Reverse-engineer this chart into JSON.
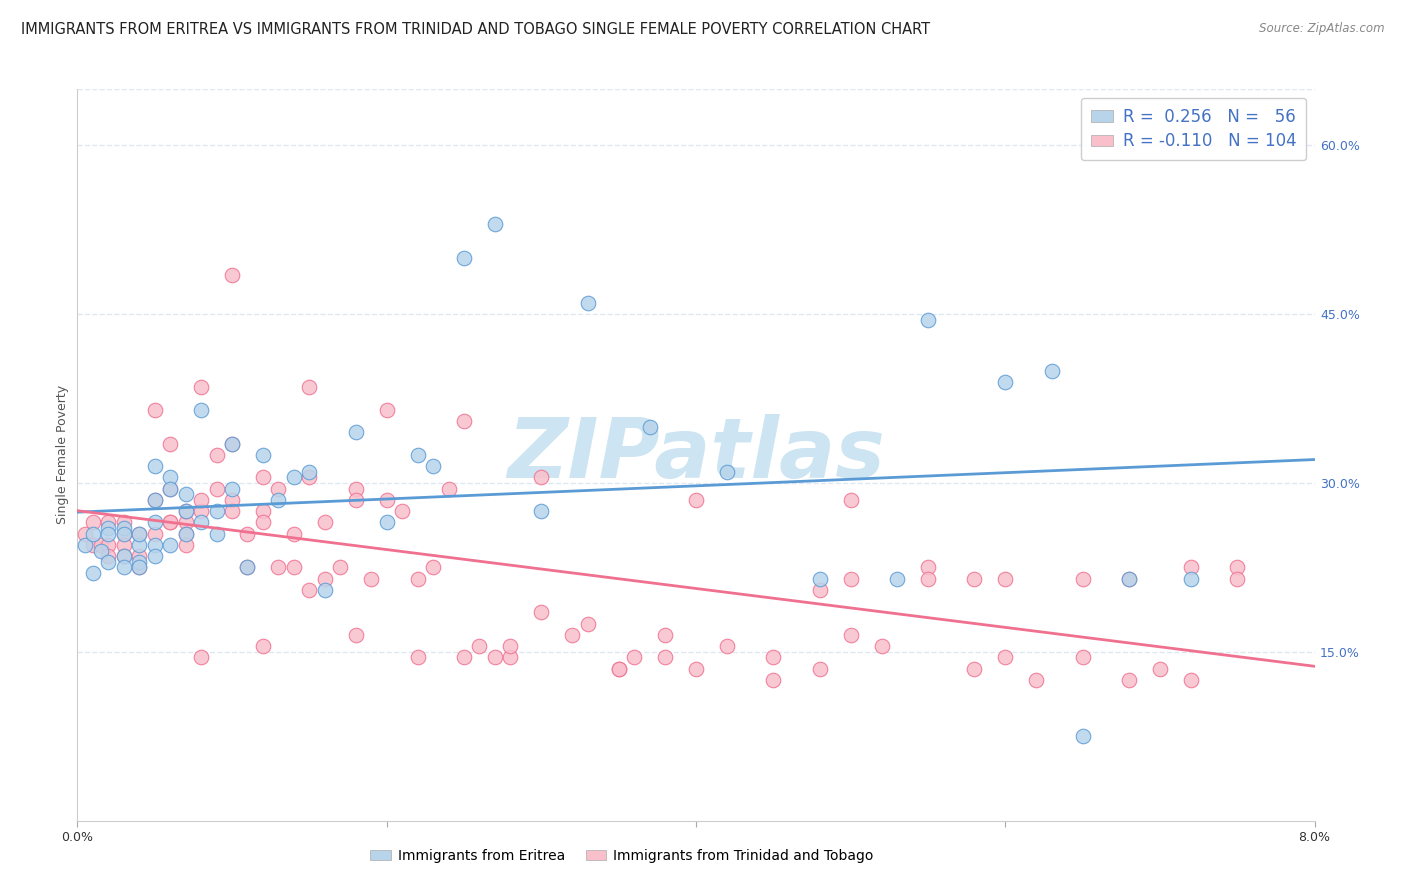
{
  "title": "IMMIGRANTS FROM ERITREA VS IMMIGRANTS FROM TRINIDAD AND TOBAGO SINGLE FEMALE POVERTY CORRELATION CHART",
  "source": "Source: ZipAtlas.com",
  "ylabel": "Single Female Poverty",
  "xlim": [
    0.0,
    0.08
  ],
  "ylim": [
    0.0,
    0.65
  ],
  "y_ticks_right": [
    0.15,
    0.3,
    0.45,
    0.6
  ],
  "y_tick_labels_right": [
    "15.0%",
    "30.0%",
    "45.0%",
    "60.0%"
  ],
  "legend_eritrea_R": "0.256",
  "legend_eritrea_N": "56",
  "legend_tt_R": "-0.110",
  "legend_tt_N": "104",
  "color_eritrea_fill": "#b8d4ea",
  "color_tt_fill": "#f9c0cc",
  "color_eritrea_edge": "#5b9bd5",
  "color_tt_edge": "#f07090",
  "color_eritrea_line": "#5b9bd5",
  "color_tt_line": "#f07090",
  "color_legend_blue": "#4472c4",
  "color_legend_pink": "#e05070",
  "watermark_text": "ZIPatlas",
  "watermark_color": "#cde4f2",
  "background_color": "#ffffff",
  "grid_color": "#dde8f0",
  "title_fontsize": 10.5,
  "axis_fontsize": 9,
  "legend_fontsize": 12,
  "scatter_eritrea_x": [
    0.0005,
    0.001,
    0.001,
    0.0015,
    0.002,
    0.002,
    0.002,
    0.003,
    0.003,
    0.003,
    0.003,
    0.004,
    0.004,
    0.004,
    0.004,
    0.005,
    0.005,
    0.005,
    0.005,
    0.005,
    0.006,
    0.006,
    0.006,
    0.007,
    0.007,
    0.007,
    0.008,
    0.008,
    0.009,
    0.009,
    0.01,
    0.01,
    0.011,
    0.012,
    0.013,
    0.014,
    0.015,
    0.016,
    0.018,
    0.02,
    0.022,
    0.023,
    0.025,
    0.027,
    0.03,
    0.033,
    0.037,
    0.042,
    0.048,
    0.053,
    0.055,
    0.06,
    0.063,
    0.065,
    0.068,
    0.072
  ],
  "scatter_eritrea_y": [
    0.245,
    0.22,
    0.255,
    0.24,
    0.26,
    0.23,
    0.255,
    0.26,
    0.235,
    0.255,
    0.225,
    0.245,
    0.23,
    0.255,
    0.225,
    0.265,
    0.245,
    0.315,
    0.285,
    0.235,
    0.305,
    0.295,
    0.245,
    0.29,
    0.275,
    0.255,
    0.365,
    0.265,
    0.275,
    0.255,
    0.335,
    0.295,
    0.225,
    0.325,
    0.285,
    0.305,
    0.31,
    0.205,
    0.345,
    0.265,
    0.325,
    0.315,
    0.5,
    0.53,
    0.275,
    0.46,
    0.35,
    0.31,
    0.215,
    0.215,
    0.445,
    0.39,
    0.4,
    0.075,
    0.215,
    0.215
  ],
  "scatter_tt_x": [
    0.0005,
    0.001,
    0.001,
    0.0015,
    0.002,
    0.002,
    0.002,
    0.003,
    0.003,
    0.003,
    0.003,
    0.004,
    0.004,
    0.004,
    0.005,
    0.005,
    0.005,
    0.006,
    0.006,
    0.006,
    0.006,
    0.007,
    0.007,
    0.007,
    0.007,
    0.008,
    0.008,
    0.008,
    0.009,
    0.009,
    0.01,
    0.01,
    0.01,
    0.011,
    0.011,
    0.012,
    0.012,
    0.012,
    0.013,
    0.013,
    0.014,
    0.014,
    0.015,
    0.015,
    0.016,
    0.016,
    0.017,
    0.018,
    0.018,
    0.019,
    0.02,
    0.021,
    0.022,
    0.023,
    0.024,
    0.025,
    0.026,
    0.027,
    0.028,
    0.03,
    0.032,
    0.033,
    0.035,
    0.036,
    0.038,
    0.04,
    0.042,
    0.045,
    0.048,
    0.05,
    0.052,
    0.055,
    0.058,
    0.06,
    0.062,
    0.065,
    0.068,
    0.07,
    0.072,
    0.075,
    0.01,
    0.015,
    0.02,
    0.025,
    0.03,
    0.04,
    0.05,
    0.035,
    0.008,
    0.012,
    0.018,
    0.022,
    0.028,
    0.038,
    0.048,
    0.058,
    0.06,
    0.065,
    0.068,
    0.072,
    0.075,
    0.055,
    0.05,
    0.045
  ],
  "scatter_tt_y": [
    0.255,
    0.245,
    0.265,
    0.245,
    0.265,
    0.245,
    0.235,
    0.255,
    0.265,
    0.245,
    0.235,
    0.235,
    0.225,
    0.255,
    0.365,
    0.285,
    0.255,
    0.295,
    0.335,
    0.265,
    0.265,
    0.265,
    0.255,
    0.275,
    0.245,
    0.275,
    0.285,
    0.385,
    0.295,
    0.325,
    0.285,
    0.335,
    0.275,
    0.225,
    0.255,
    0.275,
    0.305,
    0.265,
    0.295,
    0.225,
    0.255,
    0.225,
    0.205,
    0.305,
    0.265,
    0.215,
    0.225,
    0.295,
    0.285,
    0.215,
    0.285,
    0.275,
    0.215,
    0.225,
    0.295,
    0.145,
    0.155,
    0.145,
    0.145,
    0.185,
    0.165,
    0.175,
    0.135,
    0.145,
    0.165,
    0.135,
    0.155,
    0.145,
    0.205,
    0.165,
    0.155,
    0.225,
    0.215,
    0.145,
    0.125,
    0.145,
    0.215,
    0.135,
    0.225,
    0.225,
    0.485,
    0.385,
    0.365,
    0.355,
    0.305,
    0.285,
    0.285,
    0.135,
    0.145,
    0.155,
    0.165,
    0.145,
    0.155,
    0.145,
    0.135,
    0.135,
    0.215,
    0.215,
    0.125,
    0.125,
    0.215,
    0.215,
    0.215,
    0.125
  ]
}
